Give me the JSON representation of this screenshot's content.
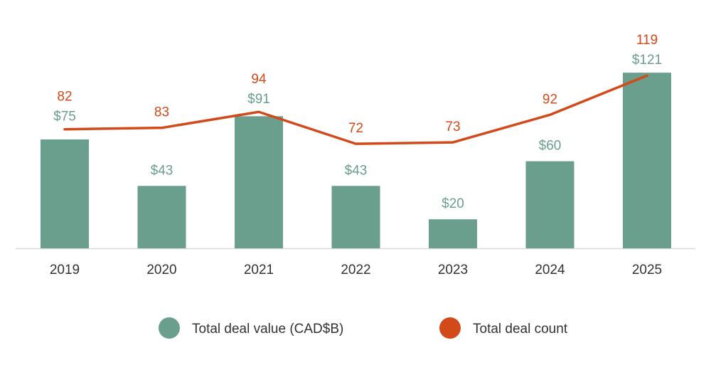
{
  "chart_data": {
    "type": "bar+line",
    "categories": [
      "2019",
      "2020",
      "2021",
      "2022",
      "2023",
      "2024",
      "2025"
    ],
    "series": [
      {
        "name": "Total deal value (CAD$B)",
        "type": "bar",
        "values": [
          75,
          43,
          91,
          43,
          20,
          60,
          121
        ],
        "labels": [
          "$75",
          "$43",
          "$91",
          "$43",
          "$20",
          "$60",
          "$121"
        ],
        "color": "#6a9e8d"
      },
      {
        "name": "Total deal count",
        "type": "line",
        "values": [
          82,
          83,
          94,
          72,
          73,
          92,
          119
        ],
        "labels": [
          "82",
          "83",
          "94",
          "72",
          "73",
          "92",
          "119"
        ],
        "color": "#d24a1a"
      }
    ],
    "title": "",
    "xlabel": "",
    "ylabel": "",
    "ylim": [
      0,
      125
    ],
    "grid": false,
    "legend_position": "bottom"
  },
  "colors": {
    "axis": "#d9d9d9",
    "tick_text": "#333333"
  }
}
